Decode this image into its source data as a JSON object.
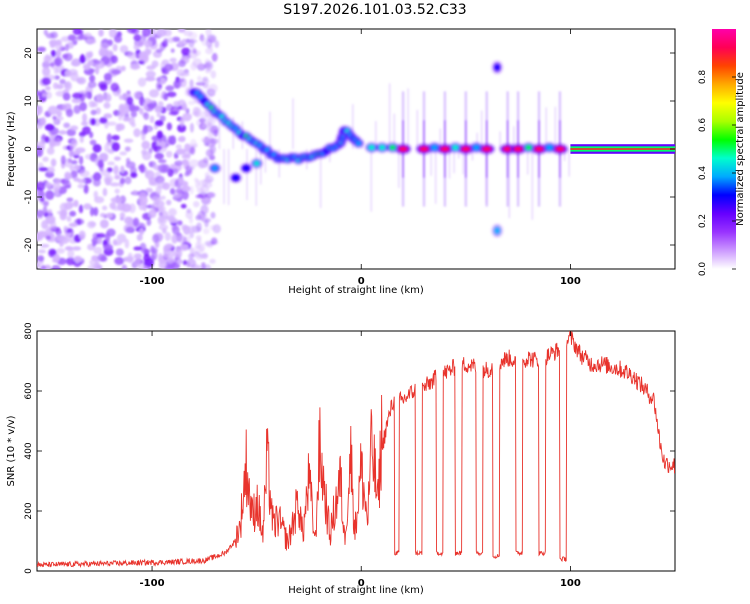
{
  "title": "S197.2026.101.03.52.C33",
  "colors": {
    "snr_line": "#e8332c",
    "carrier_line": "#e8332c",
    "axis": "#000000",
    "background": "#ffffff"
  },
  "chart_data": [
    {
      "type": "heatmap",
      "title": "S197.2026.101.03.52.C33",
      "xlabel": "Height of straight line (km)",
      "ylabel": "Frequency (Hz)",
      "xlim": [
        -155,
        150
      ],
      "ylim": [
        -25,
        25
      ],
      "xticks": [
        -100,
        0,
        100
      ],
      "yticks": [
        -20,
        -10,
        0,
        10,
        20
      ],
      "colorbar": {
        "label": "Normalized spectral amplitude",
        "range": [
          0,
          1
        ],
        "ticks": [
          "0.0",
          "0.2",
          "0.4",
          "0.6",
          "0.8"
        ],
        "tick_values": [
          0.0,
          0.2,
          0.4,
          0.6,
          0.8
        ],
        "stops": [
          "#ffffff",
          "#cc99ff",
          "#9933ff",
          "#6600ff",
          "#0000ff",
          "#00aaff",
          "#00ffcc",
          "#00ff00",
          "#aaff00",
          "#ffff00",
          "#ffaa00",
          "#ff4400",
          "#ff0055",
          "#ff00aa"
        ]
      },
      "features": {
        "noise_region_x": [
          -155,
          -75
        ],
        "carrier_freq": 0,
        "carrier_start_x": 100,
        "descending_branch": [
          [
            -80,
            12
          ],
          [
            -70,
            8
          ],
          [
            -60,
            4
          ],
          [
            -50,
            1
          ],
          [
            -40,
            -2
          ],
          [
            -30,
            -2
          ],
          [
            -20,
            -1
          ],
          [
            -10,
            1
          ],
          [
            -8,
            4
          ],
          [
            0,
            1
          ]
        ],
        "lower_branch": [
          [
            -70,
            -4
          ],
          [
            -60,
            -6
          ],
          [
            -55,
            -4
          ],
          [
            -50,
            -3
          ]
        ],
        "bursts_x": [
          20,
          30,
          40,
          50,
          60,
          70,
          75,
          85,
          95
        ],
        "aliases": [
          [
            65,
            17
          ],
          [
            65,
            -17
          ]
        ]
      }
    },
    {
      "type": "line",
      "xlabel": "Height of straight line (km)",
      "ylabel": "SNR (10 * v/v)",
      "xlim": [
        -155,
        150
      ],
      "ylim": [
        0,
        800
      ],
      "xticks": [
        -100,
        0,
        100
      ],
      "yticks": [
        0,
        200,
        400,
        600,
        800
      ],
      "series": [
        {
          "name": "SNR",
          "x": [
            -155,
            -120,
            -90,
            -75,
            -65,
            -58,
            -55,
            -52,
            -50,
            -47,
            -45,
            -42,
            -40,
            -35,
            -30,
            -28,
            -25,
            -22,
            -20,
            -15,
            -10,
            -8,
            -5,
            -3,
            0,
            3,
            5,
            8,
            10,
            12,
            15,
            20,
            25,
            30,
            35,
            40,
            45,
            50,
            55,
            60,
            65,
            70,
            75,
            80,
            85,
            90,
            95,
            98,
            100,
            105,
            110,
            115,
            120,
            125,
            130,
            135,
            140,
            143,
            145,
            150
          ],
          "values": [
            20,
            25,
            30,
            35,
            60,
            120,
            300,
            150,
            200,
            100,
            320,
            120,
            150,
            80,
            200,
            100,
            260,
            80,
            350,
            100,
            260,
            90,
            330,
            110,
            290,
            140,
            360,
            190,
            410,
            480,
            560,
            570,
            600,
            610,
            640,
            660,
            680,
            690,
            680,
            670,
            690,
            710,
            700,
            710,
            700,
            720,
            740,
            760,
            780,
            720,
            690,
            690,
            680,
            670,
            650,
            610,
            570,
            420,
            360,
            350
          ]
        }
      ],
      "dropouts": [
        {
          "x0": 16,
          "x1": 18,
          "level": 60
        },
        {
          "x0": 26,
          "x1": 29,
          "level": 60
        },
        {
          "x0": 36,
          "x1": 39,
          "level": 60
        },
        {
          "x0": 45,
          "x1": 48,
          "level": 60
        },
        {
          "x0": 55,
          "x1": 58,
          "level": 60
        },
        {
          "x0": 63,
          "x1": 66,
          "level": 50
        },
        {
          "x0": 74,
          "x1": 77,
          "level": 60
        },
        {
          "x0": 85,
          "x1": 88,
          "level": 60
        },
        {
          "x0": 95,
          "x1": 98,
          "level": 40
        }
      ]
    }
  ]
}
